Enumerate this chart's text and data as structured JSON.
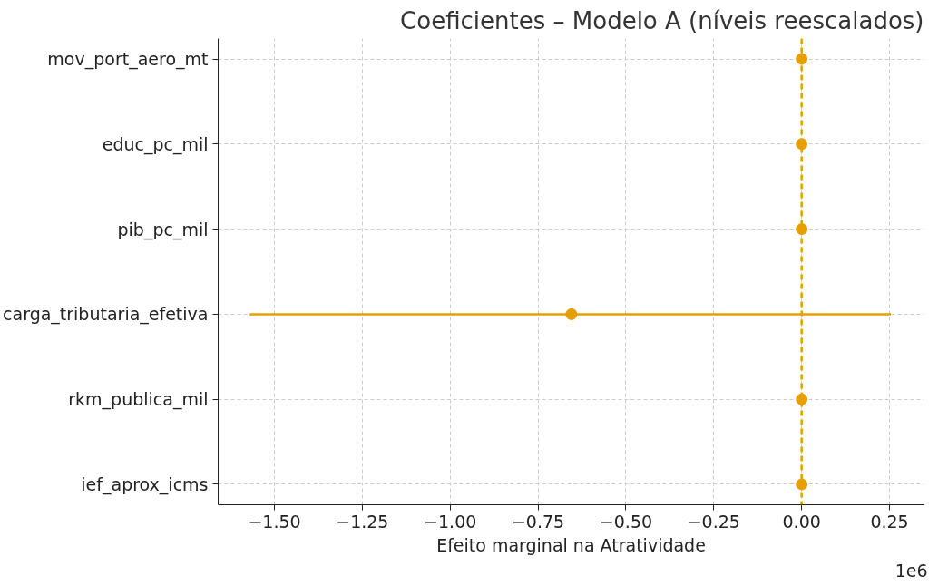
{
  "chart_data": {
    "type": "scatter",
    "orientation": "horizontal",
    "title": "Coeficientes – Modelo A (níveis reescalados)",
    "xlabel": "Efeito marginal na Atratividade",
    "categories": [
      "mov_port_aero_mt",
      "educ_pc_mil",
      "pib_pc_mil",
      "carga_tributaria_efetiva",
      "rkm_publica_mil",
      "ief_aprox_icms"
    ],
    "series": [
      {
        "color": "#e69f00",
        "values": [
          0.0,
          0.0,
          0.0,
          -0.655,
          0.0,
          0.0
        ],
        "errors": [
          null,
          null,
          null,
          [
            -1.57,
            0.254
          ],
          null,
          null
        ]
      }
    ],
    "xlim": [
      -1.66,
      0.348
    ],
    "xticks": [
      {
        "value": -1.5,
        "label": "−1.50"
      },
      {
        "value": -1.25,
        "label": "−1.25"
      },
      {
        "value": -1.0,
        "label": "−1.00"
      },
      {
        "value": -0.75,
        "label": "−0.75"
      },
      {
        "value": -0.5,
        "label": "−0.50"
      },
      {
        "value": -0.25,
        "label": "−0.25"
      },
      {
        "value": 0,
        "label": "0.00"
      },
      {
        "value": 0.25,
        "label": "0.25"
      }
    ],
    "ref_lines": [
      {
        "axis": "x",
        "value": 0,
        "color": "#e69f00",
        "line_style": "dashed"
      }
    ],
    "annotations": [
      "1e6"
    ],
    "grid": true,
    "marker": "circle"
  }
}
